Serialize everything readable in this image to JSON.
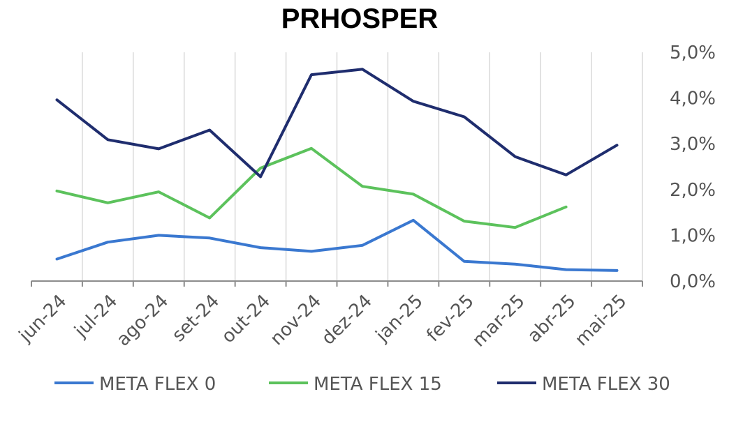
{
  "chart_data": {
    "type": "line",
    "title": "PRHOSPER",
    "categories": [
      "jun-24",
      "jul-24",
      "ago-24",
      "set-24",
      "out-24",
      "nov-24",
      "dez-24",
      "jan-25",
      "fev-25",
      "mar-25",
      "abr-25",
      "mai-25"
    ],
    "y_tick_labels": [
      "0,0%",
      "1,0%",
      "2,0%",
      "3,0%",
      "4,0%",
      "5,0%"
    ],
    "ylim": [
      0,
      5
    ],
    "y_axis_side": "right",
    "grid": "vertical",
    "legend_position": "bottom",
    "series": [
      {
        "name": "META FLEX 0",
        "color": "#3a78d0",
        "values": [
          0.48,
          0.85,
          1.0,
          0.94,
          0.73,
          0.65,
          0.78,
          1.33,
          0.43,
          0.37,
          0.25,
          0.23
        ]
      },
      {
        "name": "META FLEX 15",
        "color": "#5cc25c",
        "values": [
          1.97,
          1.71,
          1.95,
          1.38,
          2.47,
          2.9,
          2.07,
          1.9,
          1.31,
          1.17,
          1.62,
          null
        ]
      },
      {
        "name": "META FLEX 30",
        "color": "#1f2d6e",
        "values": [
          3.96,
          3.09,
          2.89,
          3.3,
          2.28,
          4.51,
          4.63,
          3.93,
          3.59,
          2.72,
          2.32,
          2.97
        ]
      }
    ]
  }
}
